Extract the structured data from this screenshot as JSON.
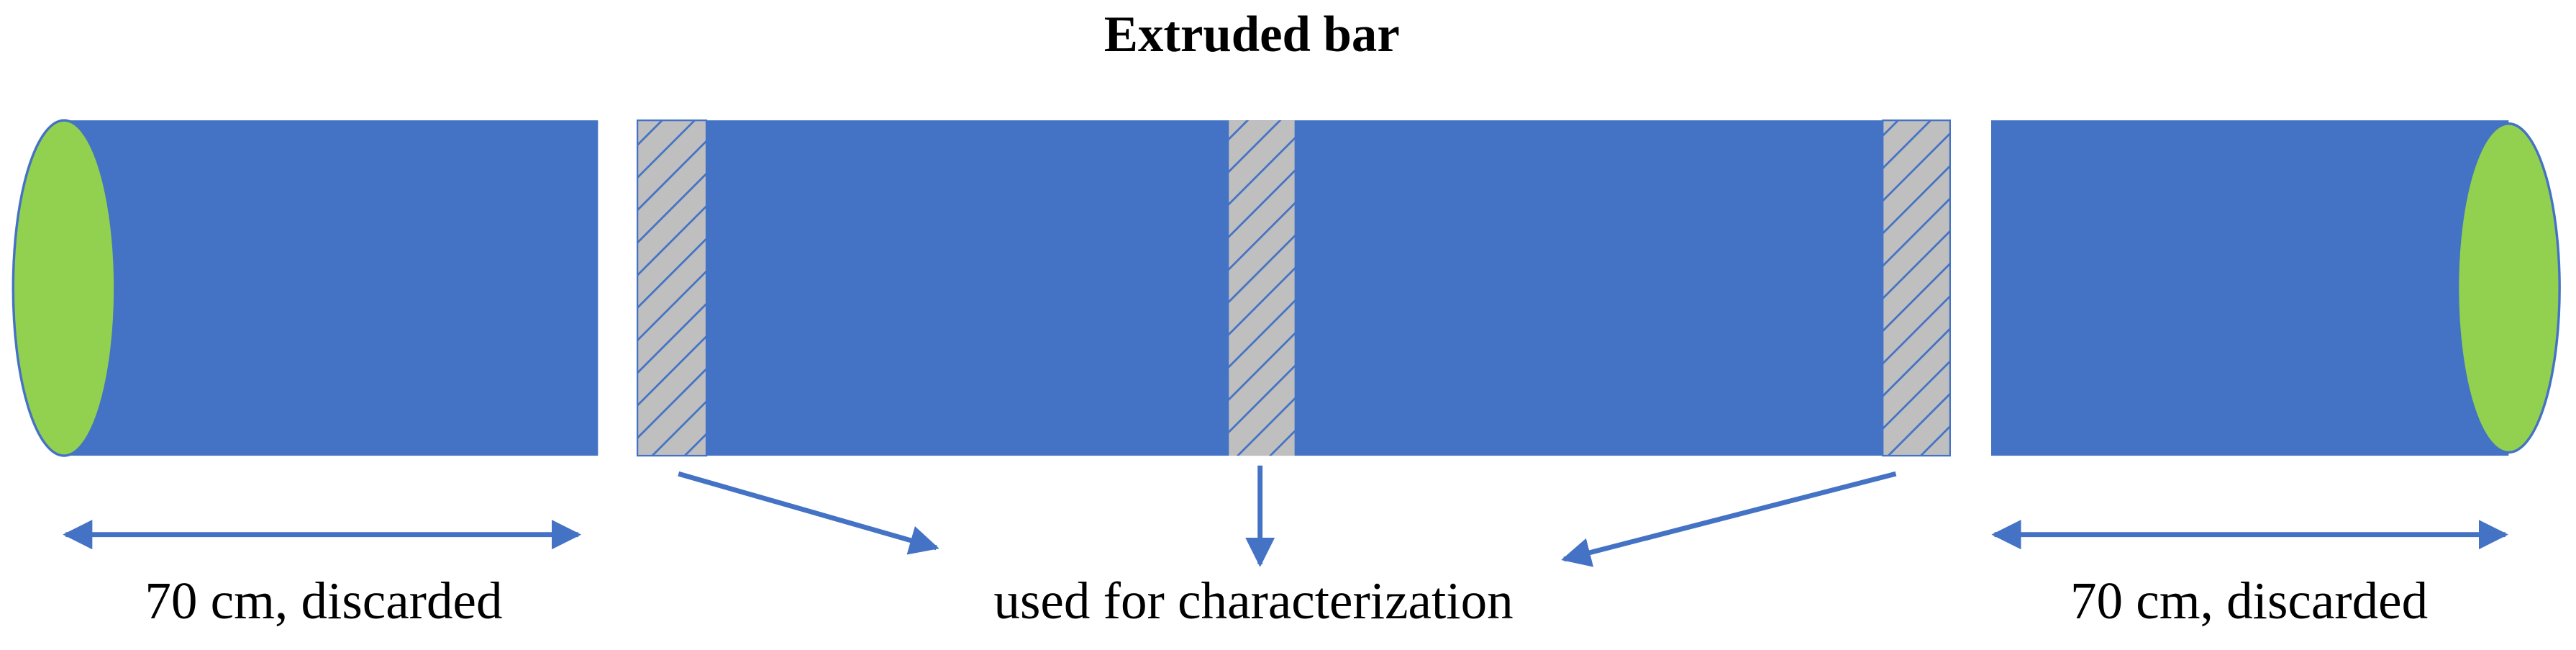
{
  "title": "Extruded bar",
  "labels": {
    "left": "70 cm, discarded",
    "center": "used for characterization",
    "right": "70 cm, discarded"
  }
}
